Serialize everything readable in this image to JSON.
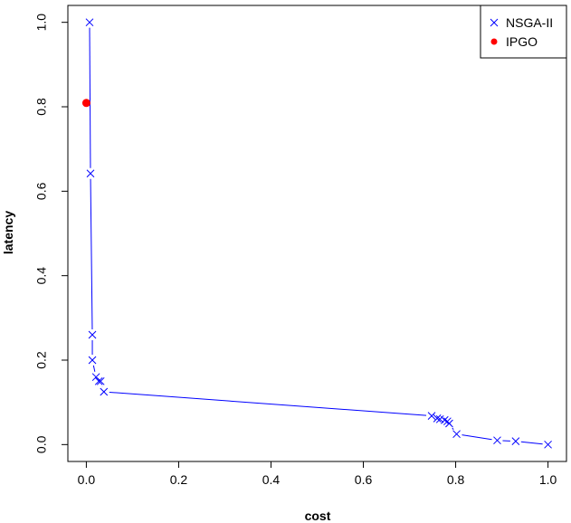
{
  "chart_data": {
    "type": "scatter",
    "xlabel": "cost",
    "ylabel": "latency",
    "xlim": [
      -0.04,
      1.04
    ],
    "ylim": [
      -0.04,
      1.04
    ],
    "x_ticks": [
      0.0,
      0.2,
      0.4,
      0.6,
      0.8,
      1.0
    ],
    "y_ticks": [
      0.0,
      0.2,
      0.4,
      0.6,
      0.8,
      1.0
    ],
    "x_tick_labels": [
      "0.0",
      "0.2",
      "0.4",
      "0.6",
      "0.8",
      "1.0"
    ],
    "y_tick_labels": [
      "0.0",
      "0.2",
      "0.4",
      "0.6",
      "0.8",
      "1.0"
    ],
    "grid": false,
    "legend_position": "top-right",
    "legend": [
      "NSGA-II",
      "IPGO"
    ],
    "series": [
      {
        "name": "NSGA-II",
        "marker": "x",
        "color": "#0000ff",
        "line": true,
        "x": [
          0.007,
          0.009,
          0.013,
          0.013,
          0.021,
          0.027,
          0.031,
          0.038,
          0.748,
          0.76,
          0.766,
          0.776,
          0.782,
          0.786,
          0.802,
          0.89,
          0.93,
          1.0
        ],
        "y": [
          1.0,
          0.642,
          0.26,
          0.2,
          0.16,
          0.15,
          0.15,
          0.125,
          0.068,
          0.062,
          0.06,
          0.058,
          0.055,
          0.05,
          0.025,
          0.01,
          0.008,
          0.0
        ]
      },
      {
        "name": "IPGO",
        "marker": "dot",
        "color": "#ff0000",
        "line": false,
        "x": [
          0.0
        ],
        "y": [
          0.809
        ]
      }
    ]
  }
}
